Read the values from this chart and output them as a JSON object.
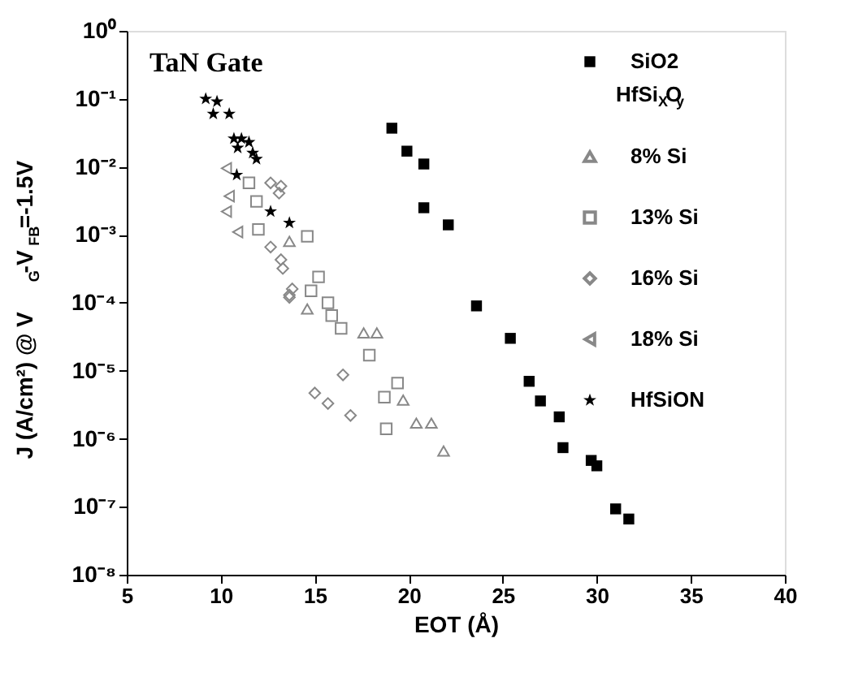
{
  "chart_data": {
    "type": "scatter",
    "xlabel": "EOT (Å)",
    "ylabel": "J (A/cm²) @ V$_{G}$-V$_{FB}$=-1.5V",
    "legend_title": "HfSi$_{X}$O$_{y}$",
    "annotations": [
      "TaN Gate"
    ],
    "log": "y",
    "xlim": [
      5,
      40
    ],
    "xticks": [
      5,
      10,
      15,
      20,
      25,
      30,
      35,
      40
    ],
    "ylim": [
      1e-08,
      1
    ],
    "yticks": [
      {
        "value": 1,
        "label": "10⁰"
      },
      {
        "value": 0.1,
        "label": "10⁻¹"
      },
      {
        "value": 0.01,
        "label": "10⁻²"
      },
      {
        "value": 0.001,
        "label": "10⁻³"
      },
      {
        "value": 0.0001,
        "label": "10⁻⁴"
      },
      {
        "value": 1e-05,
        "label": "10⁻⁵"
      },
      {
        "value": 1e-06,
        "label": "10⁻⁶"
      },
      {
        "value": 1e-07,
        "label": "10⁻⁷"
      },
      {
        "value": 1e-08,
        "label": "10⁻⁸"
      }
    ],
    "grid": false,
    "legend": "top right",
    "series": [
      {
        "name": "SiO2",
        "color": "#000000",
        "marker": "square",
        "x": [
          19.1,
          19.9,
          20.8,
          20.8,
          22.1,
          23.6,
          25.4,
          26.4,
          27.0,
          28.0,
          28.2,
          29.7,
          30.0,
          31.0,
          31.7
        ],
        "values": [
          0.037,
          0.017,
          0.011,
          0.0025,
          0.0014,
          9e-05,
          3e-05,
          7e-06,
          3.6e-06,
          2.1e-06,
          7.4e-07,
          4.8e-07,
          4e-07,
          9.3e-08,
          6.6e-08
        ]
      },
      {
        "name": "8% Si",
        "color": "#888888",
        "marker": "triangle",
        "x": [
          13.65,
          14.6,
          17.6,
          18.3,
          19.7,
          20.4,
          21.2,
          21.85
        ],
        "values": [
          0.0008,
          8.1e-05,
          3.6e-05,
          3.6e-05,
          3.7e-06,
          1.7e-06,
          1.7e-06,
          6.6e-07
        ]
      },
      {
        "name": "13% Si",
        "color": "#888888",
        "marker": "square",
        "x": [
          11.5,
          11.9,
          12.0,
          14.6,
          15.2,
          14.8,
          15.7,
          15.9,
          16.4,
          17.9,
          19.4,
          18.7,
          18.8
        ],
        "values": [
          0.0058,
          0.0031,
          0.0012,
          0.00095,
          0.00024,
          0.00015,
          0.0001,
          6.5e-05,
          4.2e-05,
          1.7e-05,
          6.6e-06,
          4.1e-06,
          1.4e-06
        ]
      },
      {
        "name": "16% Si",
        "color": "#888888",
        "marker": "diamond",
        "x": [
          12.65,
          13.2,
          13.1,
          12.65,
          13.2,
          13.3,
          13.8,
          13.65,
          13.65,
          16.5,
          15.0,
          15.7,
          16.9
        ],
        "values": [
          0.0058,
          0.0052,
          0.0041,
          0.00066,
          0.00043,
          0.00032,
          0.00016,
          0.00013,
          0.00012,
          8.7e-06,
          4.7e-06,
          3.3e-06,
          2.2e-06
        ]
      },
      {
        "name": "18% Si",
        "color": "#888888",
        "marker": "triangle-left",
        "x": [
          10.3,
          10.45,
          10.3,
          10.9
        ],
        "values": [
          0.0095,
          0.0037,
          0.0022,
          0.0011
        ]
      },
      {
        "name": "HfSiON",
        "color": "#000000",
        "marker": "star",
        "x": [
          9.2,
          9.8,
          9.6,
          10.45,
          10.7,
          11.1,
          11.5,
          10.9,
          11.7,
          11.9,
          10.85,
          12.65,
          13.65
        ],
        "values": [
          0.1,
          0.091,
          0.06,
          0.06,
          0.026,
          0.026,
          0.023,
          0.019,
          0.016,
          0.013,
          0.0076,
          0.0022,
          0.0015
        ]
      }
    ]
  }
}
